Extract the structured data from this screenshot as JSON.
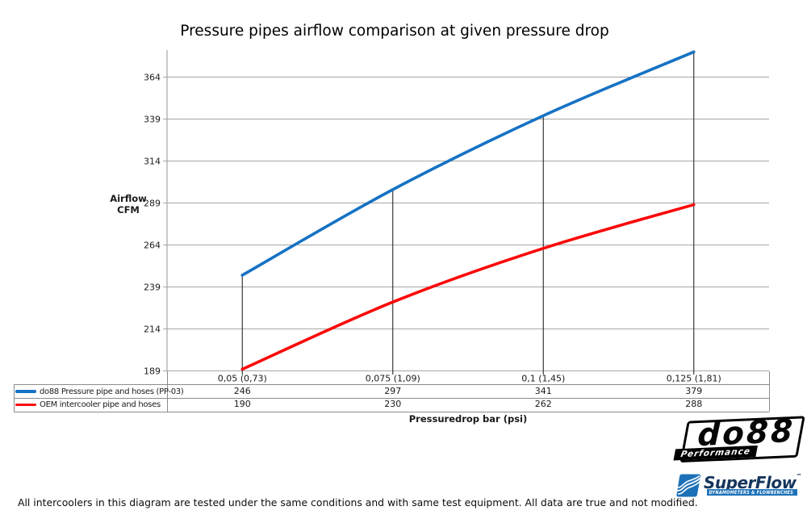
{
  "title": "Pressure pipes airflow comparison at given pressure drop",
  "chart_data": {
    "type": "line",
    "title": "Pressure pipes airflow comparison at given pressure drop",
    "categories": [
      "0,05 (0,73)",
      "0,075 (1,09)",
      "0,1 (1,45)",
      "0,125 (1,81)"
    ],
    "series": [
      {
        "name": "do88 Pressure pipe and hoses (PP-03)",
        "color": "#1572c4",
        "values": [
          246,
          297,
          341,
          379
        ]
      },
      {
        "name": "OEM intercooler pipe and hoses",
        "color": "#fb0808",
        "values": [
          190,
          230,
          262,
          288
        ]
      }
    ],
    "xlabel": "Pressuredrop bar (psi)",
    "ylabel_line1": "Airflow",
    "ylabel_line2": "CFM",
    "yticks": [
      189,
      214,
      239,
      264,
      289,
      314,
      339,
      364
    ],
    "ylim": [
      189,
      380.1
    ],
    "grid": true,
    "smooth_lines": true,
    "droplines_at_categories": true,
    "legend_position": "table-left",
    "data_table_shown": true,
    "grid_color": "#a6a6a6",
    "dropline_color": "#262626"
  },
  "footer": {
    "note": "All intercoolers in this diagram are tested under the same conditions and with same test equipment. All data are true and not modified."
  },
  "logos": {
    "do88": {
      "text": "do88",
      "tagline": "Performance"
    },
    "superflow": {
      "text": "SuperFlow",
      "trademark": "™",
      "tagline": "DYNAMOMETERS & FLOWBENCHES"
    }
  }
}
